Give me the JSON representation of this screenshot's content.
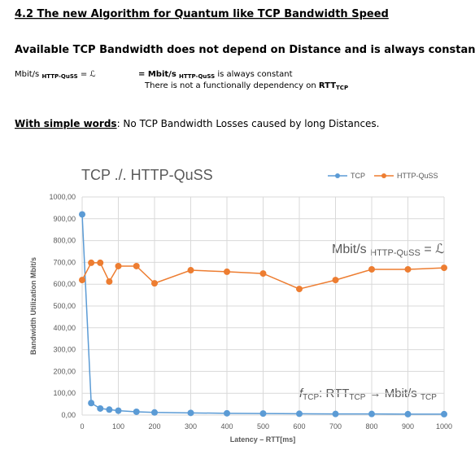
{
  "document": {
    "heading": "4.2 The new Algorithm for Quantum like TCP Bandwidth Speed",
    "statement": "Available TCP Bandwidth does not depend on Distance and is always constant.",
    "formula": {
      "left": "Mbit/s",
      "left_sub": "HTTP-QuSS",
      "left_eq": "= ℒ",
      "right_prefix": "= Mbit/s",
      "right_sub": "HTTP-QuSS",
      "right_rest": "is always constant",
      "note": "There is not a functionally dependency on",
      "note_bold": "RTT",
      "note_sub": "TCP"
    },
    "summary_label": "With simple words",
    "summary_text": ": No TCP Bandwidth Losses caused by long Distances."
  },
  "chart_data": {
    "type": "line",
    "title": "TCP ./. HTTP-QuSS",
    "x_label": "Latency – RTT[ms]",
    "y_label": "Bandwidth Utilization Mbit/s",
    "x": [
      0,
      25,
      50,
      75,
      100,
      150,
      200,
      300,
      400,
      500,
      600,
      700,
      800,
      900,
      1000
    ],
    "series": [
      {
        "name": "TCP",
        "color": "#5b9bd5",
        "values": [
          920,
          55,
          30,
          25,
          20,
          15,
          12,
          10,
          8,
          7,
          6,
          5,
          5,
          4,
          4
        ]
      },
      {
        "name": "HTTP-QuSS",
        "color": "#ed7d31",
        "values": [
          619,
          698,
          698,
          612,
          683,
          683,
          604,
          664,
          657,
          649,
          578,
          619,
          668,
          668,
          675
        ]
      }
    ],
    "xlim": [
      0,
      1000
    ],
    "xticks": [
      0,
      100,
      200,
      300,
      400,
      500,
      600,
      700,
      800,
      900,
      1000
    ],
    "ylim": [
      0,
      1000
    ],
    "yticks": [
      {
        "value": 0,
        "label": "0,00"
      },
      {
        "value": 100,
        "label": "100,00"
      },
      {
        "value": 200,
        "label": "200,00"
      },
      {
        "value": 300,
        "label": "300,00"
      },
      {
        "value": 400,
        "label": "400,00"
      },
      {
        "value": 500,
        "label": "500,00"
      },
      {
        "value": 600,
        "label": "600,00"
      },
      {
        "value": 700,
        "label": "700,00"
      },
      {
        "value": 800,
        "label": "800,00"
      },
      {
        "value": 900,
        "label": "900,00"
      },
      {
        "value": 1000,
        "label": "1000,00"
      }
    ],
    "grid": true,
    "annotation_quss": {
      "text": "Mbit/s",
      "sub": "HTTP-QuSS",
      "rest": "= ℒ"
    },
    "annotation_tcp": {
      "f": "f",
      "f_sub": "TCP",
      "mid": ": RTT",
      "mid_sub": "TCP",
      "arrow": "→ Mbit/s",
      "end_sub": "TCP"
    }
  }
}
